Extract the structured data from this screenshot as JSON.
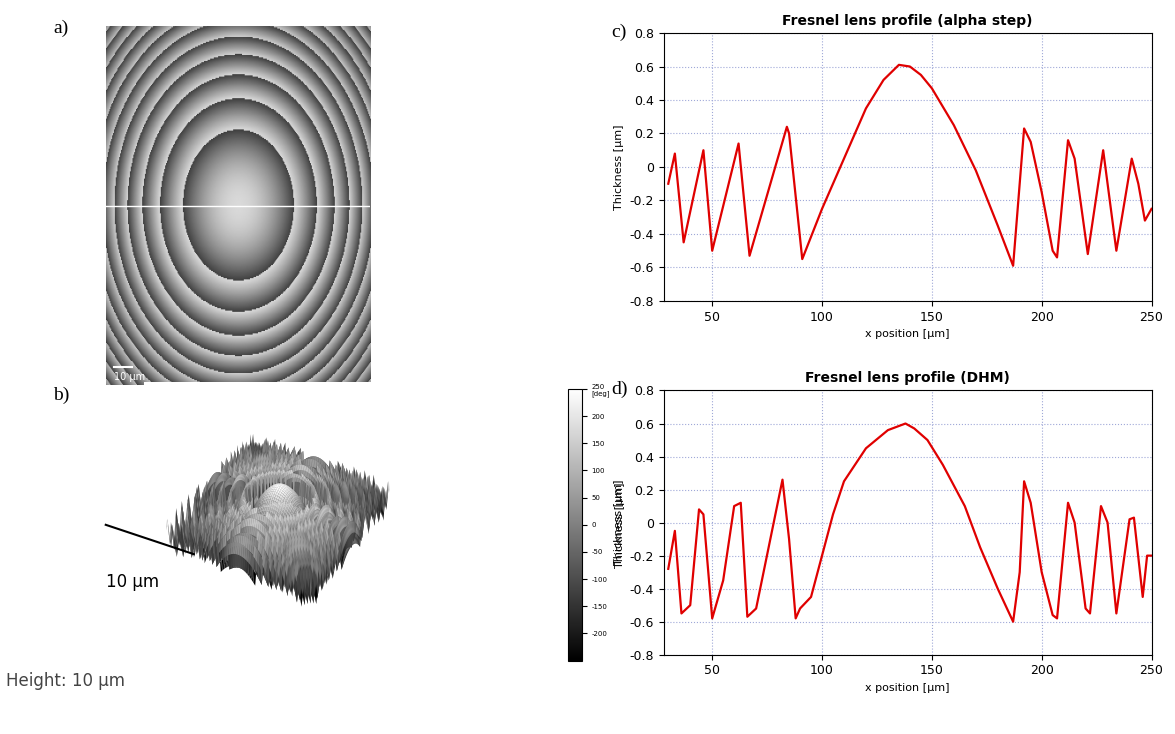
{
  "chart_data": [
    {
      "type": "line",
      "annotation": "c)",
      "title": "Fresnel lens profile (alpha step)",
      "x_label": "x position [µm]",
      "y_label": "Thickness [µm]",
      "x": [
        30,
        33,
        37,
        46,
        50,
        62,
        67,
        84,
        85,
        91,
        100,
        110,
        120,
        128,
        135,
        140,
        145,
        150,
        160,
        170,
        180,
        187,
        192,
        195,
        200,
        205,
        207,
        212,
        215,
        221,
        228,
        234,
        241,
        244,
        247,
        250
      ],
      "values": [
        -0.1,
        0.08,
        -0.45,
        0.1,
        -0.5,
        0.14,
        -0.53,
        0.24,
        0.2,
        -0.55,
        -0.25,
        0.05,
        0.35,
        0.52,
        0.61,
        0.6,
        0.55,
        0.47,
        0.25,
        -0.02,
        -0.35,
        -0.59,
        0.23,
        0.15,
        -0.15,
        -0.5,
        -0.54,
        0.16,
        0.05,
        -0.52,
        0.1,
        -0.5,
        0.05,
        -0.1,
        -0.32,
        -0.25
      ],
      "color": "#e00000",
      "xlim": [
        28,
        250
      ],
      "xticks": [
        50,
        100,
        150,
        200,
        250
      ],
      "ylim": [
        -0.8,
        0.8
      ],
      "yticks": [
        -0.8,
        -0.6,
        -0.4,
        -0.2,
        0,
        0.2,
        0.4,
        0.6,
        0.8
      ],
      "grid": true
    },
    {
      "type": "line",
      "annotation": "d)",
      "title": "Fresnel lens profile (DHM)",
      "x_label": "x position [µm]",
      "y_label": "Thickness [µm]",
      "x": [
        30,
        33,
        36,
        40,
        44,
        46,
        50,
        55,
        60,
        63,
        66,
        70,
        78,
        82,
        85,
        88,
        90,
        95,
        100,
        105,
        110,
        120,
        130,
        138,
        142,
        148,
        155,
        165,
        172,
        180,
        187,
        190,
        192,
        195,
        200,
        205,
        207,
        212,
        215,
        220,
        222,
        227,
        230,
        234,
        240,
        242,
        246,
        248,
        250
      ],
      "values": [
        -0.28,
        -0.05,
        -0.55,
        -0.5,
        0.08,
        0.05,
        -0.58,
        -0.35,
        0.1,
        0.12,
        -0.57,
        -0.52,
        0.0,
        0.26,
        -0.1,
        -0.58,
        -0.52,
        -0.45,
        -0.2,
        0.05,
        0.25,
        0.45,
        0.56,
        0.6,
        0.57,
        0.5,
        0.35,
        0.1,
        -0.15,
        -0.4,
        -0.6,
        -0.3,
        0.25,
        0.12,
        -0.3,
        -0.56,
        -0.58,
        0.12,
        0.0,
        -0.52,
        -0.55,
        0.1,
        0.0,
        -0.55,
        0.02,
        0.03,
        -0.45,
        -0.2,
        -0.2
      ],
      "color": "#e00000",
      "xlim": [
        28,
        250
      ],
      "xticks": [
        50,
        100,
        150,
        200,
        250
      ],
      "ylim": [
        -0.8,
        0.8
      ],
      "yticks": [
        -0.8,
        -0.6,
        -0.4,
        -0.2,
        0,
        0.2,
        0.4,
        0.6,
        0.8
      ],
      "grid": true
    }
  ],
  "image_a": {
    "annotation": "a)",
    "scale_bar": "10 µm"
  },
  "image_b": {
    "annotation": "b)",
    "scale_bar": "10 µm",
    "caption": "Height: 10 µm",
    "colorbar": {
      "label": "Thickness [µm]",
      "range": [
        -250,
        250
      ],
      "ticks": [
        {
          "value": 250,
          "label": "250\n[deg]"
        },
        200,
        150,
        100,
        50,
        0,
        -50,
        -100,
        -150,
        -200
      ]
    }
  }
}
